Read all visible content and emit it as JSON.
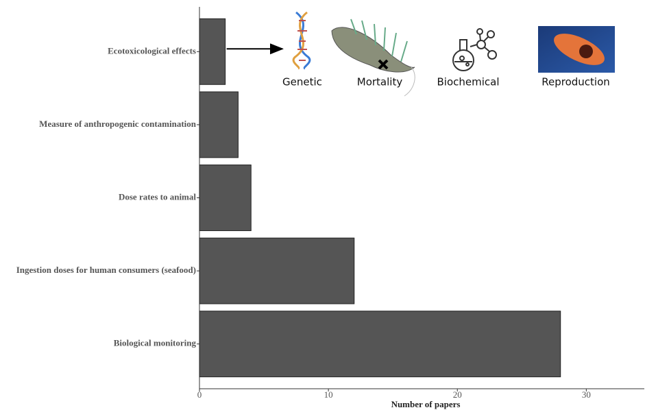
{
  "chart_data": {
    "type": "barh",
    "categories": [
      "Ecotoxicological effects",
      "Measure of anthropogenic contamination",
      "Dose rates to animal",
      "Ingestion doses for human consumers (seafood)",
      "Biological monitoring"
    ],
    "values": [
      2,
      3,
      4,
      12,
      28
    ],
    "color": "#555555",
    "xlim": [
      0,
      34.5
    ],
    "xticks": [
      0,
      10,
      20,
      30
    ],
    "xlabel": "Number of papers",
    "annotations": [
      "Genetic",
      "Mortality",
      "Biochemical",
      "Reproduction"
    ]
  }
}
